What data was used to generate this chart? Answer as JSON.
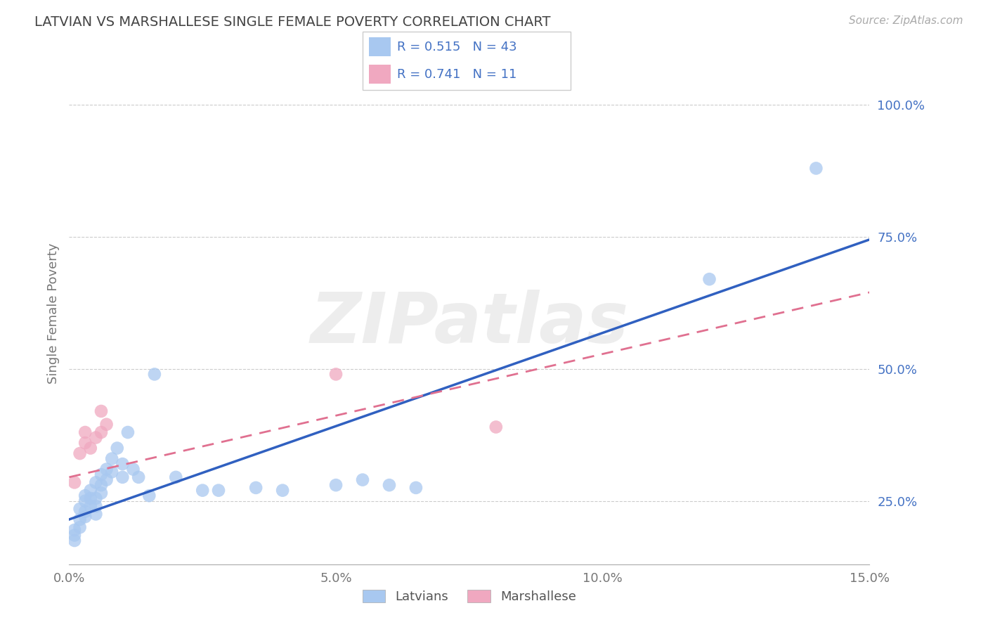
{
  "title": "LATVIAN VS MARSHALLESE SINGLE FEMALE POVERTY CORRELATION CHART",
  "source": "Source: ZipAtlas.com",
  "ylabel": "Single Female Poverty",
  "xlim": [
    0.0,
    0.15
  ],
  "ylim": [
    0.13,
    1.08
  ],
  "xticks": [
    0.0,
    0.05,
    0.1,
    0.15
  ],
  "xticklabels": [
    "0.0%",
    "5.0%",
    "10.0%",
    "15.0%"
  ],
  "yticks": [
    0.25,
    0.5,
    0.75,
    1.0
  ],
  "yticklabels": [
    "25.0%",
    "50.0%",
    "75.0%",
    "100.0%"
  ],
  "latvian_color": "#a8c8f0",
  "marshallese_color": "#f0a8c0",
  "latvian_line_color": "#3060c0",
  "marshallese_line_color": "#e07090",
  "R_latvian": 0.515,
  "N_latvian": 43,
  "R_marshallese": 0.741,
  "N_marshallese": 11,
  "legend_text_color": "#4472c4",
  "watermark": "ZIPatlas",
  "latvian_x": [
    0.001,
    0.001,
    0.001,
    0.002,
    0.002,
    0.002,
    0.003,
    0.003,
    0.003,
    0.003,
    0.004,
    0.004,
    0.004,
    0.005,
    0.005,
    0.005,
    0.005,
    0.006,
    0.006,
    0.006,
    0.007,
    0.007,
    0.008,
    0.008,
    0.009,
    0.01,
    0.01,
    0.011,
    0.012,
    0.013,
    0.015,
    0.016,
    0.02,
    0.025,
    0.028,
    0.035,
    0.04,
    0.05,
    0.055,
    0.06,
    0.065,
    0.12,
    0.14
  ],
  "latvian_y": [
    0.195,
    0.185,
    0.175,
    0.2,
    0.215,
    0.235,
    0.22,
    0.23,
    0.25,
    0.26,
    0.24,
    0.255,
    0.27,
    0.225,
    0.24,
    0.255,
    0.285,
    0.265,
    0.28,
    0.3,
    0.29,
    0.31,
    0.305,
    0.33,
    0.35,
    0.295,
    0.32,
    0.38,
    0.31,
    0.295,
    0.26,
    0.49,
    0.295,
    0.27,
    0.27,
    0.275,
    0.27,
    0.28,
    0.29,
    0.28,
    0.275,
    0.67,
    0.88
  ],
  "marshallese_x": [
    0.001,
    0.002,
    0.003,
    0.003,
    0.004,
    0.005,
    0.006,
    0.006,
    0.007,
    0.05,
    0.08
  ],
  "marshallese_y": [
    0.285,
    0.34,
    0.36,
    0.38,
    0.35,
    0.37,
    0.38,
    0.42,
    0.395,
    0.49,
    0.39
  ],
  "latvian_line_x0": 0.0,
  "latvian_line_y0": 0.215,
  "latvian_line_x1": 0.15,
  "latvian_line_y1": 0.745,
  "marshallese_line_x0": 0.0,
  "marshallese_line_y0": 0.295,
  "marshallese_line_x1": 0.15,
  "marshallese_line_y1": 0.645
}
